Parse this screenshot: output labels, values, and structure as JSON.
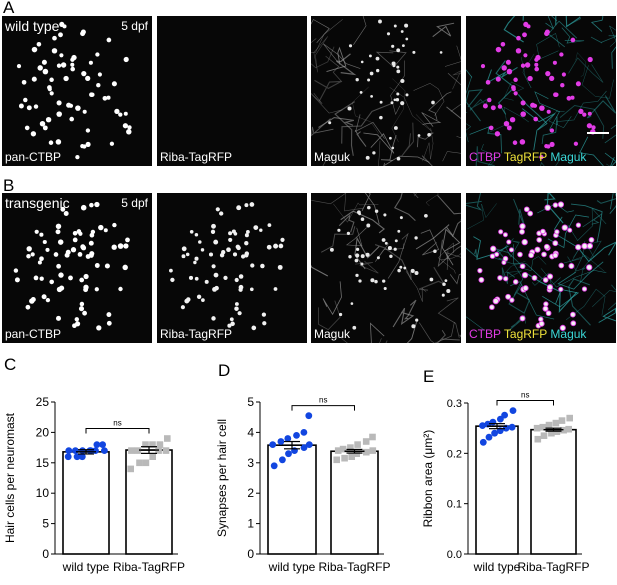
{
  "panels": {
    "A": {
      "letter": "A",
      "condition": "wild type",
      "stage": "5 dpf",
      "labels": [
        "pan-CTBP",
        "Riba-TagRFP",
        "Maguk"
      ],
      "merge": {
        "ctbp": "CTBP",
        "tagrfp": "TagRFP",
        "maguk": "Maguk"
      }
    },
    "B": {
      "letter": "B",
      "condition": "transgenic",
      "stage": "5 dpf",
      "labels": [
        "pan-CTBP",
        "Riba-TagRFP",
        "Maguk"
      ],
      "merge": {
        "ctbp": "CTBP",
        "tagrfp": "TagRFP",
        "maguk": "Maguk"
      }
    }
  },
  "colors": {
    "ctbp": "#e23ce6",
    "tagrfp": "#f0e33a",
    "maguk": "#3ad6d6",
    "wildtype_dots": "#1246e0",
    "transgenic_dots": "#b9b9b9"
  },
  "chart_data": [
    {
      "type": "bar",
      "panel": "C",
      "categories": [
        "wild type",
        "Riba-TagRFP"
      ],
      "values": [
        16.8,
        17.1
      ],
      "sem": [
        0.35,
        0.55
      ],
      "ylabel": "Hair cells per neuromast",
      "ylim": [
        0,
        25
      ],
      "yticks": [
        "0",
        "5",
        "10",
        "15",
        "20",
        "25"
      ],
      "significance": "ns",
      "points": [
        [
          16,
          16,
          16,
          17,
          17,
          17,
          17,
          17,
          17,
          17,
          18,
          18
        ],
        [
          14,
          15,
          15,
          16,
          17,
          17,
          17,
          17,
          18,
          18,
          18,
          19
        ]
      ]
    },
    {
      "type": "bar",
      "panel": "D",
      "categories": [
        "wild type",
        "Riba-TagRFP"
      ],
      "values": [
        3.58,
        3.38
      ],
      "sem": [
        0.12,
        0.06
      ],
      "ylabel": "Synapses per hair cell",
      "ylim": [
        0,
        5
      ],
      "yticks": [
        "0",
        "1",
        "2",
        "3",
        "4",
        "5"
      ],
      "significance": "ns",
      "points": [
        [
          2.9,
          3.1,
          3.3,
          3.4,
          3.5,
          3.6,
          3.6,
          3.7,
          3.8,
          3.9,
          4.0,
          4.55
        ],
        [
          3.1,
          3.15,
          3.2,
          3.3,
          3.35,
          3.4,
          3.4,
          3.45,
          3.5,
          3.6,
          3.7,
          3.85
        ]
      ]
    },
    {
      "type": "bar",
      "panel": "E",
      "categories": [
        "wild type",
        "Riba-TagRFP"
      ],
      "values": [
        0.254,
        0.247
      ],
      "sem": [
        0.005,
        0.003
      ],
      "ylabel": "Ribbon area (μm²)",
      "ylim": [
        0,
        0.3
      ],
      "yticks": [
        "0.0",
        "0.1",
        "0.2",
        "0.3"
      ],
      "significance": "ns",
      "points": [
        [
          0.222,
          0.232,
          0.24,
          0.245,
          0.25,
          0.252,
          0.255,
          0.258,
          0.262,
          0.268,
          0.276,
          0.285
        ],
        [
          0.228,
          0.235,
          0.24,
          0.243,
          0.246,
          0.248,
          0.25,
          0.252,
          0.256,
          0.26,
          0.265,
          0.27
        ]
      ]
    }
  ]
}
